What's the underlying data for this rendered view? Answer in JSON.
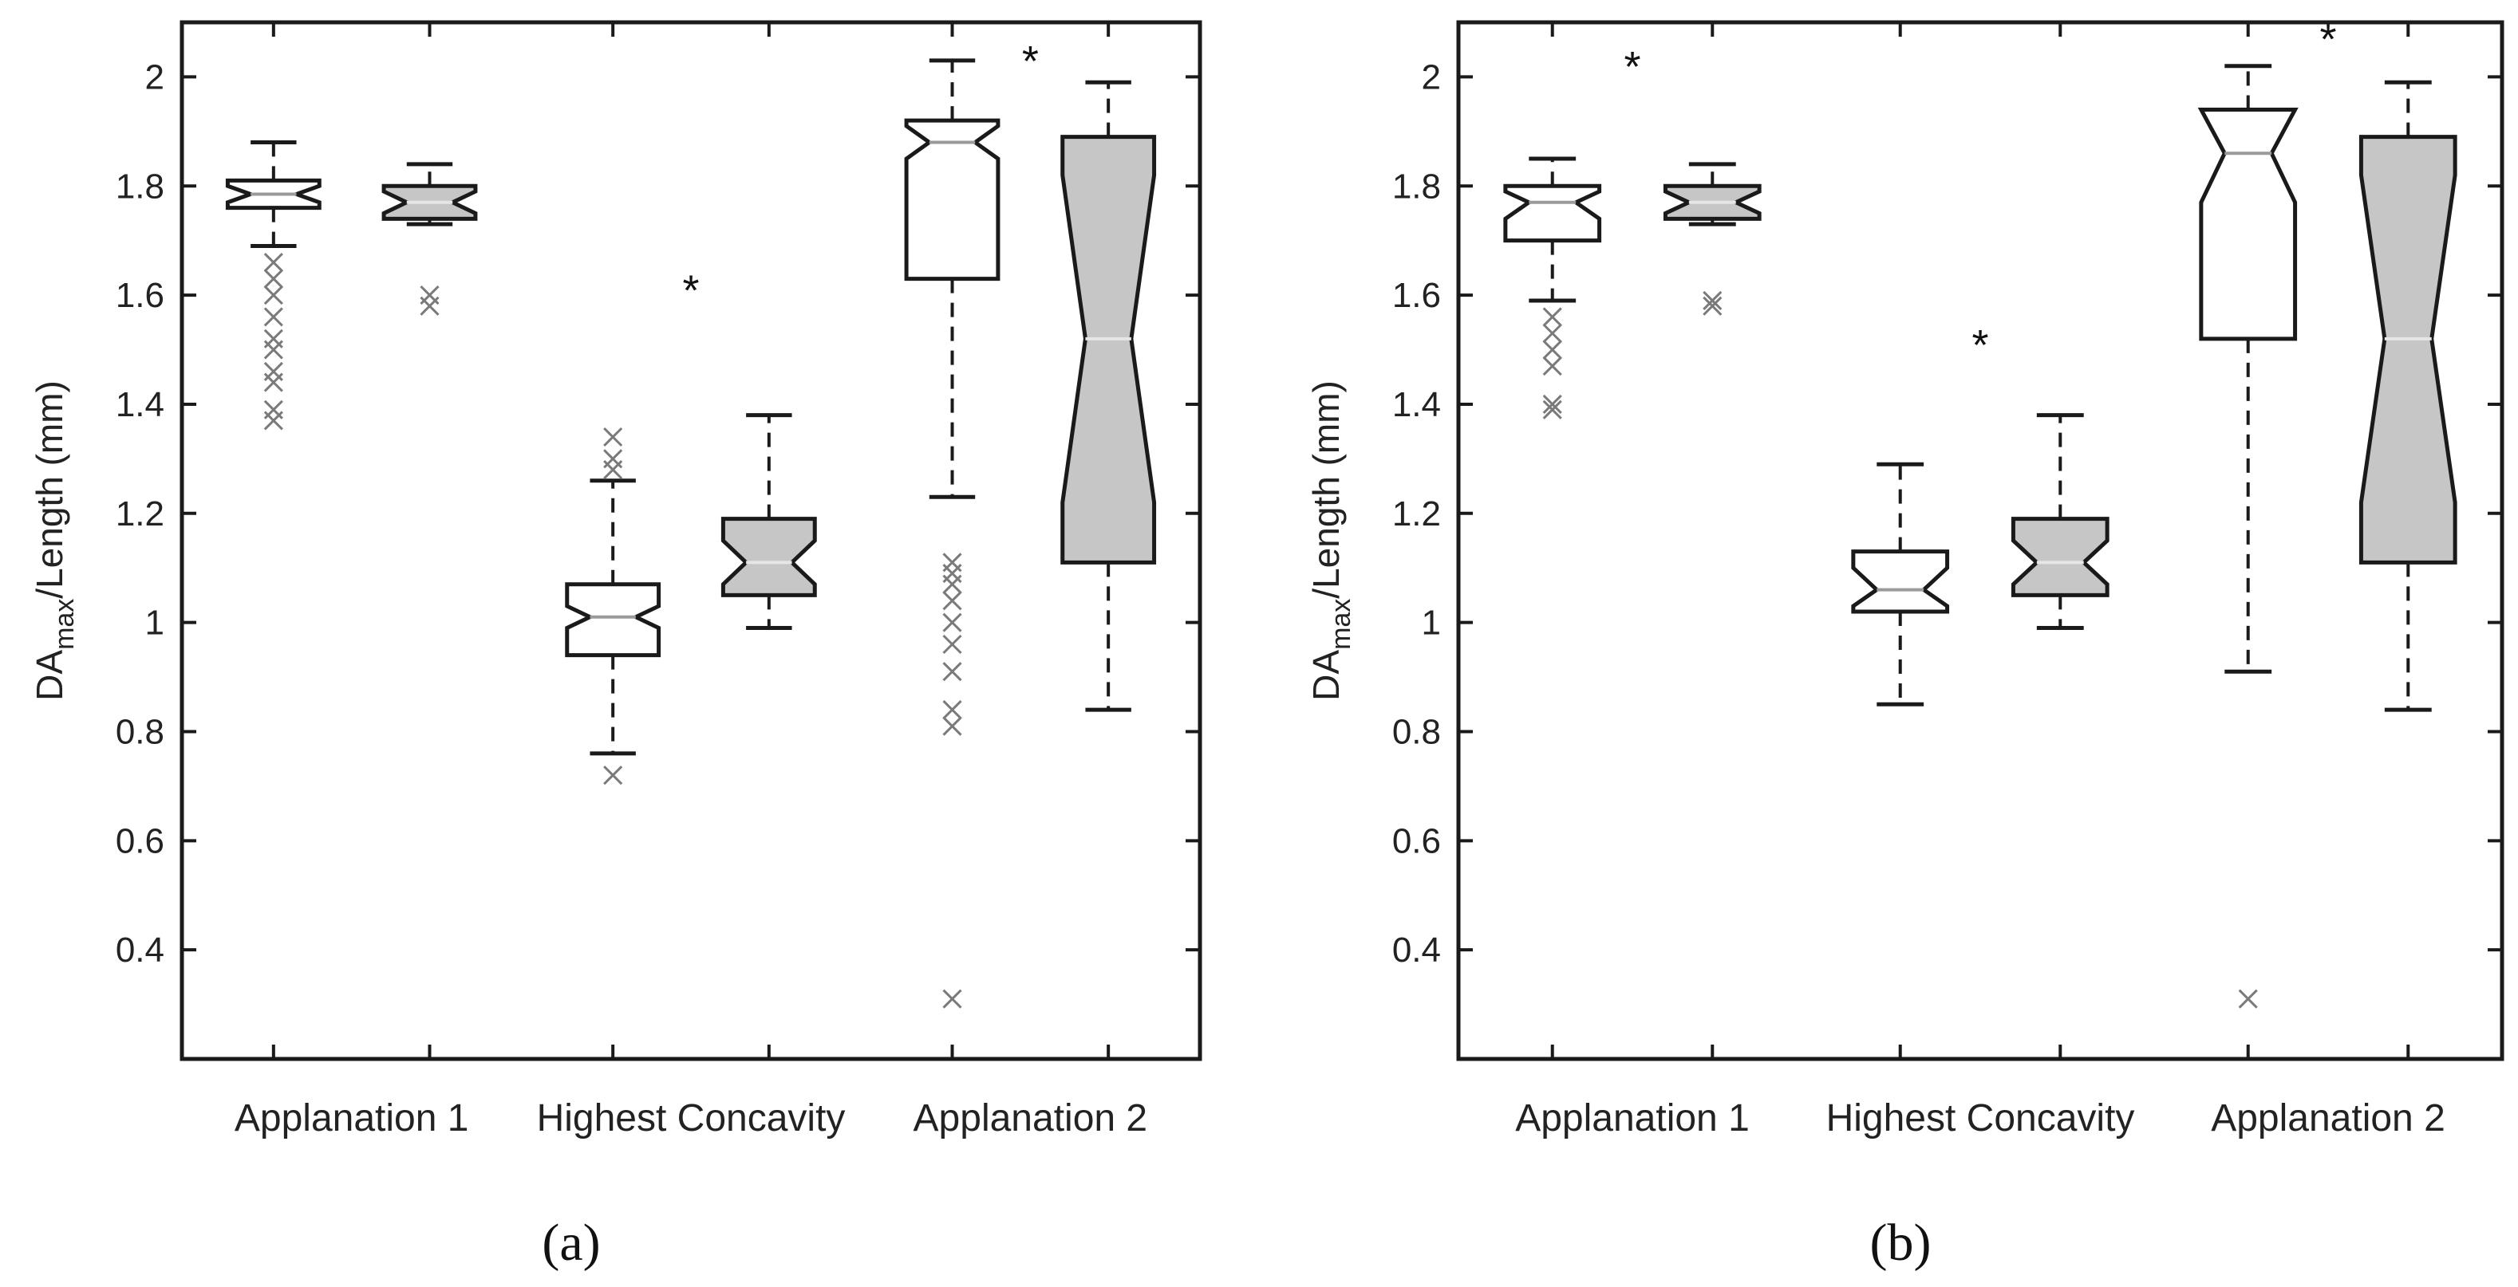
{
  "figure": {
    "panels": [
      "(a)",
      "(b)"
    ]
  },
  "chart_data": [
    {
      "type": "boxplot",
      "panel_label": "(a)",
      "ylabel_main": "DA",
      "ylabel_sub": "max",
      "ylabel_rest": "/Length (mm)",
      "ylim": [
        0.2,
        2.1
      ],
      "yticks": [
        0.4,
        0.6,
        0.8,
        1,
        1.2,
        1.4,
        1.6,
        1.8,
        2
      ],
      "ytick_labels": [
        "0.4",
        "0.6",
        "0.8",
        "1",
        "1.2",
        "1.4",
        "1.6",
        "1.8",
        "2"
      ],
      "categories": [
        "Applanation 1",
        "Highest Concavity",
        "Applanation 2"
      ],
      "boxes": [
        {
          "group": "Applanation 1",
          "fill": "white",
          "min": 1.69,
          "q1": 1.76,
          "median": 1.785,
          "q3": 1.81,
          "max": 1.88,
          "notch_lo": 1.77,
          "notch_hi": 1.8,
          "outliers": [
            1.37,
            1.39,
            1.44,
            1.46,
            1.5,
            1.52,
            1.56,
            1.6,
            1.63,
            1.66
          ]
        },
        {
          "group": "Applanation 1",
          "fill": "gray",
          "min": 1.73,
          "q1": 1.74,
          "median": 1.77,
          "q3": 1.8,
          "max": 1.84,
          "notch_lo": 1.75,
          "notch_hi": 1.79,
          "outliers": [
            1.58,
            1.6
          ]
        },
        {
          "group": "Highest Concavity",
          "fill": "white",
          "min": 0.76,
          "q1": 0.94,
          "median": 1.01,
          "q3": 1.07,
          "max": 1.26,
          "notch_lo": 0.99,
          "notch_hi": 1.03,
          "outliers": [
            0.72,
            1.28,
            1.3,
            1.34
          ]
        },
        {
          "group": "Highest Concavity",
          "fill": "gray",
          "min": 0.99,
          "q1": 1.05,
          "median": 1.11,
          "q3": 1.19,
          "max": 1.38,
          "notch_lo": 1.07,
          "notch_hi": 1.15,
          "outliers": []
        },
        {
          "group": "Applanation 2",
          "fill": "white",
          "min": 1.23,
          "q1": 1.63,
          "median": 1.88,
          "q3": 1.92,
          "max": 2.03,
          "notch_lo": 1.85,
          "notch_hi": 1.91,
          "outliers": [
            0.31,
            0.81,
            0.84,
            0.91,
            0.96,
            1.0,
            1.04,
            1.07,
            1.09,
            1.11
          ]
        },
        {
          "group": "Applanation 2",
          "fill": "gray",
          "min": 0.84,
          "q1": 1.11,
          "median": 1.52,
          "q3": 1.89,
          "max": 1.99,
          "notch_lo": 1.22,
          "notch_hi": 1.82,
          "outliers": []
        }
      ],
      "significance": [
        {
          "label": "*",
          "x_between": "Highest Concavity",
          "y": 1.62
        },
        {
          "label": "*",
          "x_between": "Applanation 2",
          "y": 2.04
        }
      ]
    },
    {
      "type": "boxplot",
      "panel_label": "(b)",
      "ylabel_main": "DA",
      "ylabel_sub": "max",
      "ylabel_rest": "/Length (mm)",
      "ylim": [
        0.2,
        2.1
      ],
      "yticks": [
        0.4,
        0.6,
        0.8,
        1,
        1.2,
        1.4,
        1.6,
        1.8,
        2
      ],
      "ytick_labels": [
        "0.4",
        "0.6",
        "0.8",
        "1",
        "1.2",
        "1.4",
        "1.6",
        "1.8",
        "2"
      ],
      "categories": [
        "Applanation 1",
        "Highest Concavity",
        "Applanation 2"
      ],
      "boxes": [
        {
          "group": "Applanation 1",
          "fill": "white",
          "min": 1.59,
          "q1": 1.7,
          "median": 1.77,
          "q3": 1.8,
          "max": 1.85,
          "notch_lo": 1.74,
          "notch_hi": 1.79,
          "outliers": [
            1.39,
            1.4,
            1.47,
            1.5,
            1.53,
            1.56
          ]
        },
        {
          "group": "Applanation 1",
          "fill": "gray",
          "min": 1.73,
          "q1": 1.74,
          "median": 1.77,
          "q3": 1.8,
          "max": 1.84,
          "notch_lo": 1.75,
          "notch_hi": 1.79,
          "outliers": [
            1.58,
            1.59
          ]
        },
        {
          "group": "Highest Concavity",
          "fill": "white",
          "min": 0.85,
          "q1": 1.02,
          "median": 1.06,
          "q3": 1.13,
          "max": 1.29,
          "notch_lo": 1.03,
          "notch_hi": 1.1,
          "outliers": []
        },
        {
          "group": "Highest Concavity",
          "fill": "gray",
          "min": 0.99,
          "q1": 1.05,
          "median": 1.11,
          "q3": 1.19,
          "max": 1.38,
          "notch_lo": 1.07,
          "notch_hi": 1.15,
          "outliers": []
        },
        {
          "group": "Applanation 2",
          "fill": "white",
          "min": 0.91,
          "q1": 1.52,
          "median": 1.86,
          "q3": 1.94,
          "max": 2.02,
          "notch_lo": 1.77,
          "notch_hi": 1.96,
          "outliers": [
            0.31
          ]
        },
        {
          "group": "Applanation 2",
          "fill": "gray",
          "min": 0.84,
          "q1": 1.11,
          "median": 1.52,
          "q3": 1.89,
          "max": 1.99,
          "notch_lo": 1.22,
          "notch_hi": 1.82,
          "outliers": []
        }
      ],
      "significance": [
        {
          "label": "*",
          "x_between": "Applanation 1",
          "y": 2.03
        },
        {
          "label": "*",
          "x_between": "Highest Concavity",
          "y": 1.52
        },
        {
          "label": "*",
          "x_between": "Applanation 2",
          "y": 2.08
        }
      ]
    }
  ],
  "colors": {
    "box_gray": "#c6c6c6",
    "box_white": "#ffffff",
    "stroke": "#1a1a1a",
    "outlier": "#7a7a7a",
    "median_on_white": "#9a9a9a",
    "median_on_gray": "#e6e6e6"
  }
}
